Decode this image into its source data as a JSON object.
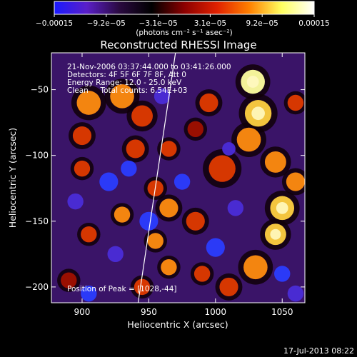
{
  "chart_data": {
    "type": "heatmap",
    "title": "Reconstructed RHESSI Image",
    "xlabel": "Heliocentric X (arcsec)",
    "ylabel": "Heliocentric Y (arcsec)",
    "xlim": [
      877,
      1067
    ],
    "ylim": [
      -212,
      -22
    ],
    "x_ticks": [
      900,
      950,
      1000,
      1050
    ],
    "y_ticks": [
      -50,
      -100,
      -150,
      -200
    ],
    "x_tick_labels": [
      "900",
      "950",
      "1000",
      "1050"
    ],
    "y_tick_labels": [
      "−50",
      "−100",
      "−150",
      "−200"
    ],
    "colorbar": {
      "min": -0.00015,
      "max": 0.00015,
      "tick_labels": [
        "−0.00015",
        "−9.2e−05",
        "−3.1e−05",
        "3.1e−05",
        "9.2e−05",
        "0.00015"
      ],
      "units_label": "(photons cm⁻² s⁻¹ asec⁻²)",
      "colors": [
        "#1a1aff",
        "#5a1fc8",
        "#2a0a40",
        "#000000",
        "#8b0000",
        "#e02000",
        "#ff8000",
        "#ffff60",
        "#ffffff"
      ]
    },
    "annotations": [
      "21-Nov-2006 03:37:44.000 to 03:41:26.000",
      "Detectors: 4F 5F 6F 7F 8F, Att 0",
      "Energy Range: 12.0 - 25.0 keV",
      "Clean     Total counts: 6.54E+03"
    ],
    "peak_label": "Position of Peak = [1028,-44]",
    "peak": [
      1028,
      -44
    ],
    "limb_line": [
      [
        942,
        -212
      ],
      [
        970,
        -22
      ]
    ],
    "blobs": [
      {
        "x": 1028,
        "y": -44,
        "r": 9,
        "v": 1.0
      },
      {
        "x": 1032,
        "y": -68,
        "r": 10,
        "v": 0.85
      },
      {
        "x": 1025,
        "y": -88,
        "r": 9,
        "v": 0.6
      },
      {
        "x": 1005,
        "y": -110,
        "r": 10,
        "v": 0.45
      },
      {
        "x": 1045,
        "y": -105,
        "r": 8,
        "v": 0.55
      },
      {
        "x": 1050,
        "y": -140,
        "r": 9,
        "v": 0.7
      },
      {
        "x": 1045,
        "y": -160,
        "r": 8,
        "v": 0.75
      },
      {
        "x": 1030,
        "y": -185,
        "r": 9,
        "v": 0.55
      },
      {
        "x": 1060,
        "y": -120,
        "r": 7,
        "v": 0.5
      },
      {
        "x": 905,
        "y": -60,
        "r": 9,
        "v": 0.55
      },
      {
        "x": 930,
        "y": -55,
        "r": 9,
        "v": 0.5
      },
      {
        "x": 945,
        "y": -70,
        "r": 8,
        "v": 0.45
      },
      {
        "x": 900,
        "y": -85,
        "r": 7,
        "v": 0.45
      },
      {
        "x": 940,
        "y": -95,
        "r": 7,
        "v": 0.4
      },
      {
        "x": 965,
        "y": -95,
        "r": 6,
        "v": 0.4
      },
      {
        "x": 900,
        "y": -110,
        "r": 6,
        "v": 0.35
      },
      {
        "x": 955,
        "y": -125,
        "r": 6,
        "v": 0.35
      },
      {
        "x": 930,
        "y": -145,
        "r": 6,
        "v": 0.6
      },
      {
        "x": 965,
        "y": -140,
        "r": 7,
        "v": 0.55
      },
      {
        "x": 905,
        "y": -160,
        "r": 6,
        "v": 0.45
      },
      {
        "x": 955,
        "y": -165,
        "r": 6,
        "v": 0.5
      },
      {
        "x": 985,
        "y": -150,
        "r": 7,
        "v": 0.45
      },
      {
        "x": 965,
        "y": -185,
        "r": 6,
        "v": 0.55
      },
      {
        "x": 945,
        "y": -200,
        "r": 6,
        "v": 0.35
      },
      {
        "x": 990,
        "y": -190,
        "r": 6,
        "v": 0.35
      },
      {
        "x": 995,
        "y": -60,
        "r": 7,
        "v": 0.35
      },
      {
        "x": 985,
        "y": -80,
        "r": 6,
        "v": 0.3
      },
      {
        "x": 1060,
        "y": -60,
        "r": 6,
        "v": 0.35
      },
      {
        "x": 890,
        "y": -195,
        "r": 6,
        "v": 0.3
      },
      {
        "x": 1010,
        "y": -200,
        "r": 7,
        "v": 0.4
      },
      {
        "x": 920,
        "y": -120,
        "r": 7,
        "v": -0.6
      },
      {
        "x": 935,
        "y": -110,
        "r": 6,
        "v": -0.7
      },
      {
        "x": 950,
        "y": -150,
        "r": 7,
        "v": -0.65
      },
      {
        "x": 975,
        "y": -120,
        "r": 6,
        "v": -0.6
      },
      {
        "x": 1000,
        "y": -170,
        "r": 7,
        "v": -0.7
      },
      {
        "x": 1015,
        "y": -140,
        "r": 6,
        "v": -0.55
      },
      {
        "x": 1050,
        "y": -190,
        "r": 6,
        "v": -0.6
      },
      {
        "x": 925,
        "y": -175,
        "r": 6,
        "v": -0.55
      },
      {
        "x": 895,
        "y": -135,
        "r": 6,
        "v": -0.5
      },
      {
        "x": 1010,
        "y": -95,
        "r": 5,
        "v": -0.45
      },
      {
        "x": 960,
        "y": -55,
        "r": 6,
        "v": -0.5
      },
      {
        "x": 905,
        "y": -205,
        "r": 6,
        "v": -0.6
      },
      {
        "x": 1060,
        "y": -205,
        "r": 6,
        "v": -0.45
      }
    ]
  },
  "footer": {
    "timestamp": "17-Jul-2013 08:22"
  }
}
